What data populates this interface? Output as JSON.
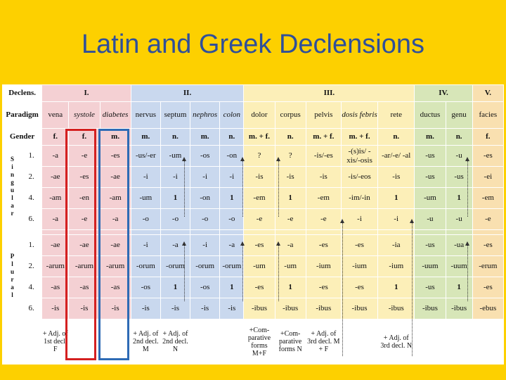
{
  "title": "Latin and Greek Declensions",
  "header": {
    "declens": "Declens.",
    "groups": [
      "I.",
      "II.",
      "III.",
      "IV.",
      "V."
    ]
  },
  "paradigm": {
    "label": "Paradigm",
    "words": [
      "vena",
      "systole",
      "diabetes",
      "nervus",
      "septum",
      "nephros",
      "colon",
      "dolor",
      "corpus",
      "pelvis",
      "dosis febris",
      "rete",
      "ductus",
      "genu",
      "facies"
    ]
  },
  "gender": {
    "label": "Gender",
    "values": [
      "f.",
      "f.",
      "m.",
      "m.",
      "n.",
      "m.",
      "n.",
      "m. + f.",
      "n.",
      "m. + f.",
      "m. + f.",
      "n.",
      "m.",
      "n.",
      "f."
    ]
  },
  "singular_label": "Singular",
  "plural_label": "Plural",
  "singular": [
    {
      "case": "1.",
      "forms": [
        "-a",
        "-e",
        "-es",
        "-us/-er",
        "-um",
        "-os",
        "-on",
        "?",
        "?",
        "-is/-es",
        "-(s)is/ -xis/-osis",
        "-ar/-e/ -al",
        "-us",
        "-u",
        "-es"
      ]
    },
    {
      "case": "2.",
      "forms": [
        "-ae",
        "-es",
        "-ae",
        "-i",
        "-i",
        "-i",
        "-i",
        "-is",
        "-is",
        "-is",
        "-is/-eos",
        "-is",
        "-us",
        "-us",
        "-ei"
      ]
    },
    {
      "case": "4.",
      "forms": [
        "-am",
        "-en",
        "-am",
        "-um",
        "1",
        "-on",
        "1",
        "-em",
        "1",
        "-em",
        "-im/-in",
        "1",
        "-um",
        "1",
        "-em"
      ]
    },
    {
      "case": "6.",
      "forms": [
        "-a",
        "-e",
        "-a",
        "-o",
        "-o",
        "-o",
        "-o",
        "-e",
        "-e",
        "-e",
        "-i",
        "-i",
        "-u",
        "-u",
        "-e"
      ]
    }
  ],
  "plural": [
    {
      "case": "1.",
      "forms": [
        "-ae",
        "-ae",
        "-ae",
        "-i",
        "-a",
        "-i",
        "-a",
        "-es",
        "-a",
        "-es",
        "-es",
        "-ia",
        "-us",
        "-ua",
        "-es"
      ]
    },
    {
      "case": "2.",
      "forms": [
        "-arum",
        "-arum",
        "-arum",
        "-orum",
        "-orum",
        "-orum",
        "-orum",
        "-um",
        "-um",
        "-ium",
        "-ium",
        "-ium",
        "-uum",
        "-uum",
        "-erum"
      ]
    },
    {
      "case": "4.",
      "forms": [
        "-as",
        "-as",
        "-as",
        "-os",
        "1",
        "-os",
        "1",
        "-es",
        "1",
        "-es",
        "-es",
        "1",
        "-us",
        "1",
        "-es"
      ]
    },
    {
      "case": "6.",
      "forms": [
        "-is",
        "-is",
        "-is",
        "-is",
        "-is",
        "-is",
        "-is",
        "-ibus",
        "-ibus",
        "-ibus",
        "-ibus",
        "-ibus",
        "-ibus",
        "-ibus",
        "-ebus"
      ]
    }
  ],
  "adjectives": [
    "+ Adj. of 1st decl. F",
    "",
    "",
    "+ Adj. of 2nd decl. M",
    "+ Adj. of 2nd decl. N",
    "",
    "",
    "+Com- parative forms M+F",
    "+Com- parative forms N",
    "+ Adj. of 3rd decl. M + F",
    "",
    "+ Adj. of 3rd decl. N",
    "",
    "",
    ""
  ]
}
